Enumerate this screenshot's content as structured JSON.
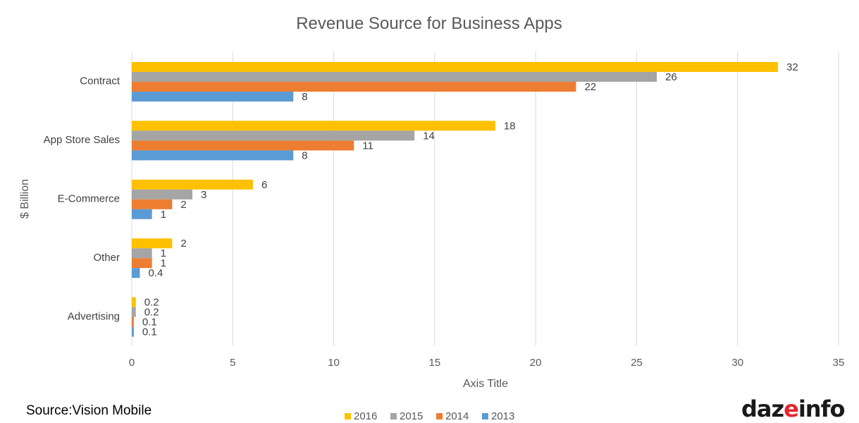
{
  "chart_data": {
    "type": "bar",
    "orientation": "horizontal",
    "title": "Revenue Source for Business Apps",
    "xlabel": "Axis Title",
    "ylabel": "$ Billion",
    "xlim": [
      0,
      35
    ],
    "xticks": [
      0,
      5,
      10,
      15,
      20,
      25,
      30,
      35
    ],
    "categories": [
      "Contract",
      "App Store Sales",
      "E-Commerce",
      "Other",
      "Advertising"
    ],
    "series": [
      {
        "name": "2016",
        "color": "#FFC000",
        "values": [
          32,
          18,
          6,
          2,
          0.2
        ]
      },
      {
        "name": "2015",
        "color": "#A5A5A5",
        "values": [
          26,
          14,
          3,
          1,
          0.2
        ]
      },
      {
        "name": "2014",
        "color": "#ED7D31",
        "values": [
          22,
          11,
          2,
          1,
          0.1
        ]
      },
      {
        "name": "2013",
        "color": "#5B9BD5",
        "values": [
          8,
          8,
          1,
          0.4,
          0.1
        ]
      }
    ],
    "grid": true,
    "legend": "bottom"
  },
  "footer": {
    "source": "Source:Vision  Mobile"
  },
  "logo": {
    "part1": "daz",
    "part2": "e",
    "part3": "info"
  }
}
